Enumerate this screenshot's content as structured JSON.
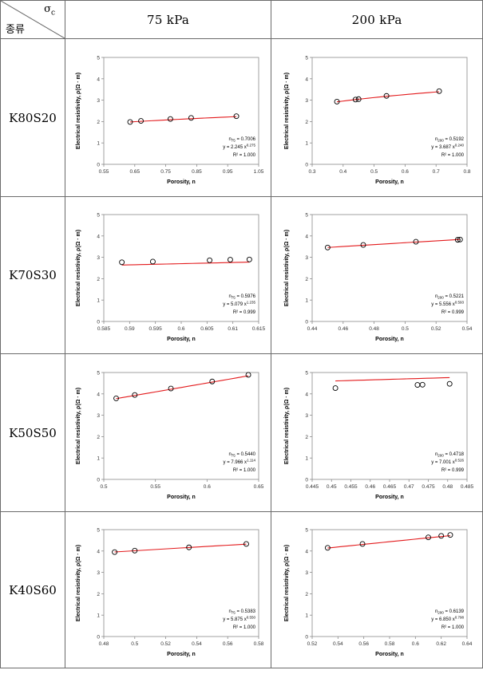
{
  "header": {
    "sigma_symbol": "σ",
    "sigma_sub": "c",
    "kind_label": "종류",
    "columns": [
      "75 kPa",
      "200 kPa"
    ]
  },
  "rows": [
    "K80S20",
    "K70S30",
    "K50S50",
    "K40S60"
  ],
  "colors": {
    "fit_line": "#e31a1c",
    "marker": "#000000",
    "frame": "#6b6b6b"
  },
  "chart_data": [
    {
      "type": "scatter",
      "row": "K80S20",
      "column": "75 kPa",
      "xlabel": "Porosity, n",
      "ylabel": "Electrical resistivity, ρ(Ω · m)",
      "xlim": [
        0.55,
        1.05
      ],
      "xticks": [
        "0.55",
        "0.65",
        "0.75",
        "0.85",
        "0.95",
        "1.05"
      ],
      "ylim": [
        0,
        5
      ],
      "yticks": [
        "0",
        "1",
        "2",
        "3",
        "4",
        "5"
      ],
      "x": [
        0.635,
        0.67,
        0.765,
        0.832,
        0.978
      ],
      "y": [
        1.98,
        2.03,
        2.12,
        2.17,
        2.25
      ],
      "fit": {
        "a": 2.245,
        "b": 0.275
      },
      "annotation": {
        "n_main": "n",
        "n_sub": "75",
        "n_value": " = 0.7006",
        "eq_main": "y = 2.245 x",
        "eq_exp": "0.275",
        "r2": "R² = 1.000"
      }
    },
    {
      "type": "scatter",
      "row": "K80S20",
      "column": "200 kPa",
      "xlabel": "Porosity, n",
      "ylabel": "Electrical resistivity, ρ(Ω · m)",
      "xlim": [
        0.3,
        0.8
      ],
      "xticks": [
        "0.3",
        "0.4",
        "0.5",
        "0.6",
        "0.7",
        "0.8"
      ],
      "ylim": [
        0,
        5
      ],
      "yticks": [
        "0",
        "1",
        "2",
        "3",
        "4",
        "5"
      ],
      "x": [
        0.38,
        0.44,
        0.45,
        0.54,
        0.71
      ],
      "y": [
        2.93,
        3.03,
        3.05,
        3.2,
        3.42
      ],
      "fit": {
        "a": 3.687,
        "b": 0.24
      },
      "annotation": {
        "n_main": "n",
        "n_sub": "200",
        "n_value": " = 0.5192",
        "eq_main": "y = 3.687 x",
        "eq_exp": "0.240",
        "r2": "R² = 1.000"
      }
    },
    {
      "type": "scatter",
      "row": "K70S30",
      "column": "75 kPa",
      "xlabel": "Porosity, n",
      "ylabel": "Electrical resistivity, ρ(Ω · m)",
      "xlim": [
        0.585,
        0.615
      ],
      "xticks": [
        "0.585",
        "0.59",
        "0.595",
        "0.6",
        "0.605",
        "0.61",
        "0.615"
      ],
      "ylim": [
        0,
        5
      ],
      "yticks": [
        "0",
        "1",
        "2",
        "3",
        "4",
        "5"
      ],
      "x": [
        0.5885,
        0.5945,
        0.6055,
        0.6095,
        0.6132
      ],
      "y": [
        2.77,
        2.8,
        2.86,
        2.89,
        2.9
      ],
      "fit": {
        "a": 5.079,
        "b": 1.235
      },
      "annotation": {
        "n_main": "n",
        "n_sub": "75",
        "n_value": " = 0.5976",
        "eq_main": "y = 5.079 x",
        "eq_exp": "1.235",
        "r2": "R² = 0.999"
      }
    },
    {
      "type": "scatter",
      "row": "K70S30",
      "column": "200 kPa",
      "xlabel": "Porosity, n",
      "ylabel": "Electrical resistivity, ρ(Ω · m)",
      "xlim": [
        0.44,
        0.54
      ],
      "xticks": [
        "0.44",
        "0.46",
        "0.48",
        "0.5",
        "0.52",
        "0.54"
      ],
      "ylim": [
        0,
        5
      ],
      "yticks": [
        "0",
        "1",
        "2",
        "3",
        "4",
        "5"
      ],
      "x": [
        0.45,
        0.473,
        0.507,
        0.534,
        0.5355
      ],
      "y": [
        3.46,
        3.58,
        3.73,
        3.82,
        3.83
      ],
      "fit": {
        "a": 5.556,
        "b": 0.593
      },
      "annotation": {
        "n_main": "n",
        "n_sub": "200",
        "n_value": " = 0.5221",
        "eq_main": "y = 5.556 x",
        "eq_exp": "0.593",
        "r2": "R² = 0.999"
      }
    },
    {
      "type": "scatter",
      "row": "K50S50",
      "column": "75 kPa",
      "xlabel": "Porosity, n",
      "ylabel": "Electrical resistivity, ρ(Ω · m)",
      "xlim": [
        0.5,
        0.65
      ],
      "xticks": [
        "0.5",
        "0.55",
        "0.6",
        "0.65"
      ],
      "ylim": [
        0,
        5
      ],
      "yticks": [
        "0",
        "1",
        "2",
        "3",
        "4",
        "5"
      ],
      "x": [
        0.512,
        0.53,
        0.565,
        0.605,
        0.64
      ],
      "y": [
        3.79,
        3.95,
        4.25,
        4.58,
        4.89
      ],
      "fit": {
        "a": 7.966,
        "b": 1.114
      },
      "annotation": {
        "n_main": "n",
        "n_sub": "75",
        "n_value": " = 0.5440",
        "eq_main": "y = 7.966 x",
        "eq_exp": "1.114",
        "r2": "R² = 1.000"
      }
    },
    {
      "type": "scatter",
      "row": "K50S50",
      "column": "200 kPa",
      "xlabel": "Porosity, n",
      "ylabel": "Electrical resistivity, ρ(Ω · m)",
      "xlim": [
        0.445,
        0.485
      ],
      "xticks": [
        "0.445",
        "0.45",
        "0.455",
        "0.46",
        "0.465",
        "0.47",
        "0.475",
        "0.48",
        "0.485"
      ],
      "ylim": [
        0,
        5
      ],
      "yticks": [
        "0",
        "1",
        "2",
        "3",
        "4",
        "5"
      ],
      "x": [
        0.451,
        0.4722,
        0.4735,
        0.4805
      ],
      "y": [
        4.27,
        4.42,
        4.43,
        4.47
      ],
      "fit": {
        "a": 7.001,
        "b": 0.526
      },
      "annotation": {
        "n_main": "n",
        "n_sub": "200",
        "n_value": " = 0.4718",
        "eq_main": "y = 7.001 x",
        "eq_exp": "0.526",
        "r2": "R² = 0.999"
      }
    },
    {
      "type": "scatter",
      "row": "K40S60",
      "column": "75 kPa",
      "xlabel": "Porosity, n",
      "ylabel": "Electrical resistivity, ρ(Ω · m)",
      "xlim": [
        0.48,
        0.58
      ],
      "xticks": [
        "0.48",
        "0.5",
        "0.52",
        "0.54",
        "0.56",
        "0.58"
      ],
      "ylim": [
        0,
        5
      ],
      "yticks": [
        "0",
        "1",
        "2",
        "3",
        "4",
        "5"
      ],
      "x": [
        0.487,
        0.5,
        0.535,
        0.572
      ],
      "y": [
        3.95,
        4.02,
        4.17,
        4.33
      ],
      "fit": {
        "a": 5.875,
        "b": 0.55
      },
      "annotation": {
        "n_main": "n",
        "n_sub": "75",
        "n_value": " = 0.5383",
        "eq_main": "y = 5.875 x",
        "eq_exp": "0.550",
        "r2": "R² = 1.000"
      }
    },
    {
      "type": "scatter",
      "row": "K40S60",
      "column": "200 kPa",
      "xlabel": "Porosity, n",
      "ylabel": "Electrical resistivity, ρ(Ω · m)",
      "xlim": [
        0.52,
        0.64
      ],
      "xticks": [
        "0.52",
        "0.54",
        "0.56",
        "0.58",
        "0.6",
        "0.62",
        "0.64"
      ],
      "ylim": [
        0,
        5
      ],
      "yticks": [
        "0",
        "1",
        "2",
        "3",
        "4",
        "5"
      ],
      "x": [
        0.532,
        0.559,
        0.61,
        0.62,
        0.627
      ],
      "y": [
        4.15,
        4.33,
        4.64,
        4.71,
        4.75
      ],
      "fit": {
        "a": 6.85,
        "b": 0.798
      },
      "annotation": {
        "n_main": "n",
        "n_sub": "200",
        "n_value": " = 0.6139",
        "eq_main": "y = 6.850 x",
        "eq_exp": "0.798",
        "r2": "R² = 1.000"
      }
    }
  ]
}
